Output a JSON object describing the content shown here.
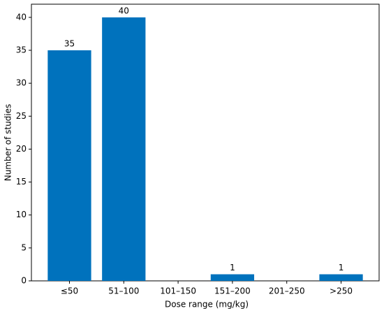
{
  "chart_data": {
    "type": "bar",
    "x_label": "Dose range (mg/kg)",
    "y_label": "Number of studies",
    "categories": [
      "≤50",
      "51–100",
      "101–150",
      "151–200",
      "201–250",
      ">250"
    ],
    "values": [
      35,
      40,
      0,
      1,
      0,
      1
    ],
    "value_labels": [
      "35",
      "40",
      null,
      "1",
      null,
      "1"
    ],
    "color": "#0072bd",
    "ylim": [
      0,
      42
    ],
    "yticks": [
      0,
      5,
      10,
      15,
      20,
      25,
      30,
      35,
      40
    ],
    "grid": false
  }
}
